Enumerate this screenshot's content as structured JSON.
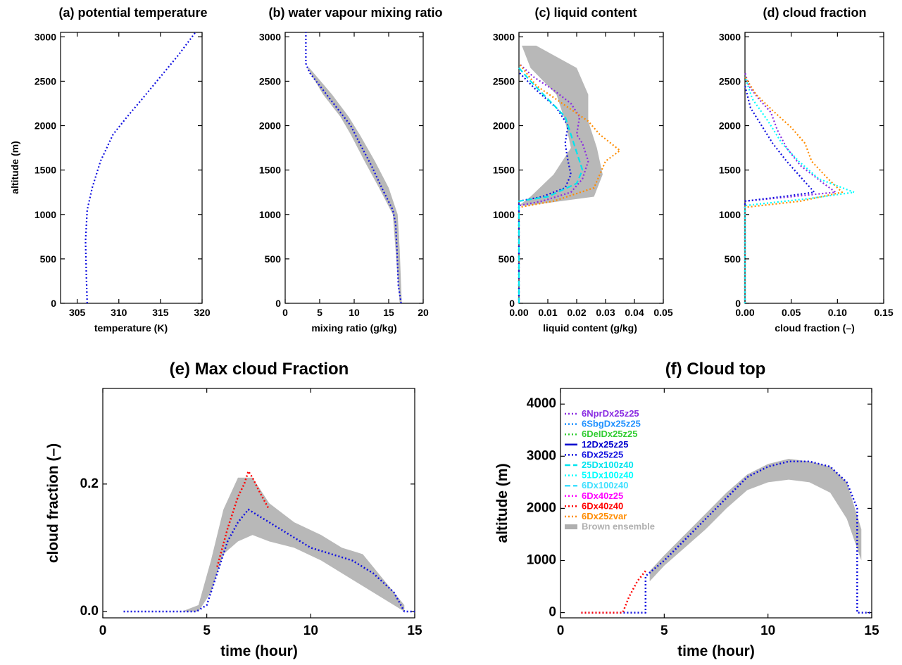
{
  "colors": {
    "6NprDx25z25": "#8a2be2",
    "6SbgDx25z25": "#1e90ff",
    "6DeIDx25z25": "#32cd32",
    "12Dx25z25": "#0000cd",
    "6Dx25z25": "#1010e0",
    "25Dx100z40": "#00e5ee",
    "51Dx100z40": "#00ffff",
    "6Dx100z40": "#40e0ff",
    "6Dx40z25": "#ff00ff",
    "6Dx40z40": "#ff0000",
    "6Dx25zvar": "#ff8c00",
    "ensemble": "#b0b0b0",
    "axis": "#000000"
  },
  "legend": [
    {
      "name": "6NprDx25z25",
      "style": "dot",
      "color": "#8a2be2"
    },
    {
      "name": "6SbgDx25z25",
      "style": "dot",
      "color": "#1e90ff"
    },
    {
      "name": "6DeIDx25z25",
      "style": "dot",
      "color": "#32cd32"
    },
    {
      "name": "12Dx25z25",
      "style": "solid",
      "color": "#0000cd"
    },
    {
      "name": "6Dx25z25",
      "style": "dot",
      "color": "#1010e0"
    },
    {
      "name": "25Dx100z40",
      "style": "dash",
      "color": "#00e5ee"
    },
    {
      "name": "51Dx100z40",
      "style": "dot",
      "color": "#00ffff"
    },
    {
      "name": "6Dx100z40",
      "style": "dash",
      "color": "#40e0ff"
    },
    {
      "name": "6Dx40z25",
      "style": "dot",
      "color": "#ff00ff"
    },
    {
      "name": "6Dx40z40",
      "style": "dot",
      "color": "#ff0000"
    },
    {
      "name": "6Dx25zvar",
      "style": "dot",
      "color": "#ff8c00"
    },
    {
      "name": "Brown ensemble",
      "style": "band",
      "color": "#b0b0b0"
    }
  ],
  "chart_data": [
    {
      "id": "a",
      "type": "line",
      "title": "(a) potential temperature",
      "xlabel": "temperature (K)",
      "ylabel": "altitude (m)",
      "xlim": [
        303,
        320
      ],
      "ylim": [
        0,
        3050
      ],
      "xticks": [
        "305",
        "310",
        "315",
        "320"
      ],
      "yticks": [
        "0",
        "500",
        "1000",
        "1500",
        "2000",
        "2500",
        "3000"
      ],
      "series": [
        {
          "name": "6Dx25z25",
          "x": [
            306.2,
            306.1,
            306.0,
            306.2,
            306.8,
            307.8,
            309.3,
            311.0,
            312.8,
            315.0,
            317.2,
            319.2
          ],
          "y": [
            0,
            300,
            700,
            1050,
            1300,
            1600,
            1900,
            2100,
            2300,
            2550,
            2800,
            3050
          ]
        }
      ]
    },
    {
      "id": "b",
      "type": "line",
      "title": "(b) water vapour mixing ratio",
      "xlabel": "mixing ratio (g/kg)",
      "ylabel": "",
      "xlim": [
        0,
        20
      ],
      "ylim": [
        0,
        3050
      ],
      "xticks": [
        "0",
        "5",
        "10",
        "15",
        "20"
      ],
      "yticks": [
        "0",
        "500",
        "1000",
        "1500",
        "2000",
        "2500",
        "3000"
      ],
      "series": [
        {
          "name": "6Dx25z25",
          "x": [
            16.8,
            16.4,
            16.2,
            16.0,
            15.6,
            14.0,
            12.5,
            10.8,
            9.5,
            7.5,
            5.5,
            3.5,
            3.0,
            3.0
          ],
          "y": [
            0,
            200,
            600,
            900,
            1050,
            1300,
            1550,
            1800,
            2000,
            2200,
            2400,
            2600,
            2700,
            3050
          ]
        }
      ],
      "band": {
        "x_low": [
          16.6,
          16.0,
          15.6,
          13.6,
          11.5,
          9.5,
          8.0,
          5.5,
          3.2
        ],
        "x_high": [
          16.9,
          16.6,
          16.3,
          15.0,
          13.0,
          10.8,
          9.2,
          6.8,
          3.5
        ],
        "y": [
          0,
          600,
          1000,
          1300,
          1600,
          1900,
          2100,
          2350,
          2650
        ]
      }
    },
    {
      "id": "c",
      "type": "line",
      "title": "(c) liquid content",
      "xlabel": "liquid content (g/kg)",
      "ylabel": "",
      "xlim": [
        0,
        0.05
      ],
      "ylim": [
        0,
        3050
      ],
      "xticks": [
        "0.00",
        "0.01",
        "0.02",
        "0.03",
        "0.04",
        "0.05"
      ],
      "yticks": [
        "0",
        "500",
        "1000",
        "1500",
        "2000",
        "2500",
        "3000"
      ],
      "series": [
        {
          "name": "6NprDx25z25",
          "x": [
            0,
            0,
            0.008,
            0.018,
            0.022,
            0.024,
            0.022,
            0.02,
            0.021,
            0.018,
            0.012,
            0.005,
            0
          ],
          "y": [
            0,
            1100,
            1150,
            1250,
            1400,
            1600,
            1800,
            1900,
            2100,
            2250,
            2400,
            2550,
            2700
          ]
        },
        {
          "name": "6Dx25zvar",
          "x": [
            0,
            0,
            0.012,
            0.026,
            0.028,
            0.03,
            0.035,
            0.028,
            0.024,
            0.015,
            0.006,
            0
          ],
          "y": [
            0,
            1080,
            1150,
            1300,
            1450,
            1600,
            1720,
            1900,
            2050,
            2250,
            2450,
            2700
          ]
        },
        {
          "name": "6Dx25z25",
          "x": [
            0,
            0,
            0.008,
            0.016,
            0.018,
            0.017,
            0.016,
            0.017,
            0.013,
            0.006,
            0
          ],
          "y": [
            0,
            1150,
            1200,
            1300,
            1450,
            1600,
            1800,
            2000,
            2200,
            2400,
            2600
          ]
        },
        {
          "name": "25Dx100z40",
          "x": [
            0,
            0,
            0.01,
            0.02,
            0.022,
            0.02,
            0.018,
            0.016,
            0.01,
            0.004,
            0
          ],
          "y": [
            0,
            1150,
            1200,
            1350,
            1500,
            1700,
            1900,
            2100,
            2300,
            2500,
            2650
          ]
        }
      ],
      "band": {
        "x_low": [
          0,
          0.004,
          0.012,
          0.018,
          0.016,
          0.013,
          0.004,
          0.001
        ],
        "x_high": [
          0.003,
          0.026,
          0.029,
          0.027,
          0.024,
          0.024,
          0.02,
          0.006
        ],
        "y": [
          1100,
          1200,
          1450,
          1750,
          2050,
          2350,
          2650,
          2900
        ]
      }
    },
    {
      "id": "d",
      "type": "line",
      "title": "(d) cloud fraction",
      "xlabel": "cloud fraction (–)",
      "ylabel": "",
      "xlim": [
        0,
        0.15
      ],
      "ylim": [
        0,
        3050
      ],
      "xticks": [
        "0.00",
        "0.05",
        "0.10",
        "0.15"
      ],
      "yticks": [
        "0",
        "500",
        "1000",
        "1500",
        "2000",
        "2500",
        "3000"
      ],
      "series": [
        {
          "name": "6NprDx25z25",
          "x": [
            0,
            0,
            0.05,
            0.098,
            0.085,
            0.06,
            0.045,
            0.035,
            0.028,
            0.015,
            0.004,
            0
          ],
          "y": [
            0,
            1150,
            1200,
            1250,
            1350,
            1550,
            1750,
            1950,
            2150,
            2300,
            2450,
            2600
          ]
        },
        {
          "name": "6Dx25zvar",
          "x": [
            0,
            0,
            0.06,
            0.105,
            0.09,
            0.072,
            0.065,
            0.05,
            0.032,
            0.012,
            0
          ],
          "y": [
            0,
            1080,
            1150,
            1250,
            1400,
            1600,
            1800,
            1980,
            2150,
            2350,
            2550
          ]
        },
        {
          "name": "6Dx25z25",
          "x": [
            0,
            0,
            0.04,
            0.075,
            0.062,
            0.045,
            0.03,
            0.018,
            0.006,
            0
          ],
          "y": [
            0,
            1150,
            1200,
            1250,
            1400,
            1600,
            1800,
            2000,
            2200,
            2450
          ]
        },
        {
          "name": "51Dx100z40",
          "x": [
            0,
            0,
            0.07,
            0.118,
            0.08,
            0.058,
            0.04,
            0.025,
            0.008,
            0
          ],
          "y": [
            0,
            1100,
            1180,
            1250,
            1400,
            1600,
            1800,
            2050,
            2300,
            2550
          ]
        }
      ]
    },
    {
      "id": "e",
      "type": "line",
      "title": "(e) Max cloud Fraction",
      "xlabel": "time (hour)",
      "ylabel": "cloud fraction (–)",
      "xlim": [
        0,
        15
      ],
      "ylim": [
        -0.01,
        0.35
      ],
      "xticks": [
        "0",
        "5",
        "10",
        "15"
      ],
      "yticks": [
        "0.0",
        "0.2"
      ],
      "series": [
        {
          "name": "6Dx25z25",
          "x": [
            1,
            4.5,
            5,
            5.5,
            6,
            6.5,
            7,
            7.5,
            8,
            9,
            10,
            11,
            12,
            13,
            14,
            14.5,
            15
          ],
          "y": [
            0,
            0,
            0.01,
            0.06,
            0.11,
            0.14,
            0.16,
            0.15,
            0.14,
            0.12,
            0.1,
            0.09,
            0.08,
            0.06,
            0.03,
            0,
            0
          ]
        },
        {
          "name": "6Dx40z40",
          "x": [
            5.5,
            6,
            6.5,
            6.8,
            7,
            7.2,
            7.5,
            8
          ],
          "y": [
            0.07,
            0.13,
            0.18,
            0.2,
            0.22,
            0.21,
            0.19,
            0.16
          ]
        }
      ],
      "band": {
        "x": [
          3.8,
          4.6,
          5.2,
          5.8,
          6.5,
          7.2,
          8,
          9.2,
          10.5,
          11.5,
          12.5,
          13.5,
          14.5
        ],
        "y_low": [
          0,
          0,
          0.03,
          0.09,
          0.11,
          0.12,
          0.11,
          0.1,
          0.08,
          0.06,
          0.04,
          0.02,
          0
        ],
        "y_high": [
          0,
          0.01,
          0.08,
          0.16,
          0.21,
          0.21,
          0.17,
          0.14,
          0.12,
          0.1,
          0.09,
          0.05,
          0.01
        ]
      }
    },
    {
      "id": "f",
      "type": "line",
      "title": "(f) Cloud top",
      "xlabel": "time (hour)",
      "ylabel": "altitude (m)",
      "xlim": [
        0,
        15
      ],
      "ylim": [
        -100,
        4300
      ],
      "xticks": [
        "0",
        "5",
        "10",
        "15"
      ],
      "yticks": [
        "0",
        "1000",
        "2000",
        "3000",
        "4000"
      ],
      "series": [
        {
          "name": "6Dx25z25",
          "x": [
            1,
            4.1,
            4.1,
            5,
            6,
            7,
            8,
            9,
            10,
            11,
            12,
            13,
            13.8,
            14.3,
            14.3,
            15
          ],
          "y": [
            0,
            0,
            700,
            1000,
            1400,
            1800,
            2200,
            2600,
            2800,
            2900,
            2900,
            2800,
            2500,
            2000,
            0,
            0
          ]
        },
        {
          "name": "6Dx40z40",
          "x": [
            1,
            3.0,
            3.3,
            3.7,
            4.1
          ],
          "y": [
            0,
            0,
            300,
            600,
            800
          ]
        }
      ],
      "band": {
        "x": [
          4.3,
          5,
          6,
          7,
          8,
          9,
          10,
          11,
          12,
          13,
          13.8,
          14.5
        ],
        "y_low": [
          600,
          900,
          1250,
          1600,
          2000,
          2350,
          2500,
          2550,
          2500,
          2300,
          1800,
          1000
        ],
        "y_high": [
          800,
          1100,
          1500,
          1900,
          2300,
          2650,
          2850,
          2950,
          2900,
          2800,
          2500,
          1600
        ]
      }
    }
  ]
}
